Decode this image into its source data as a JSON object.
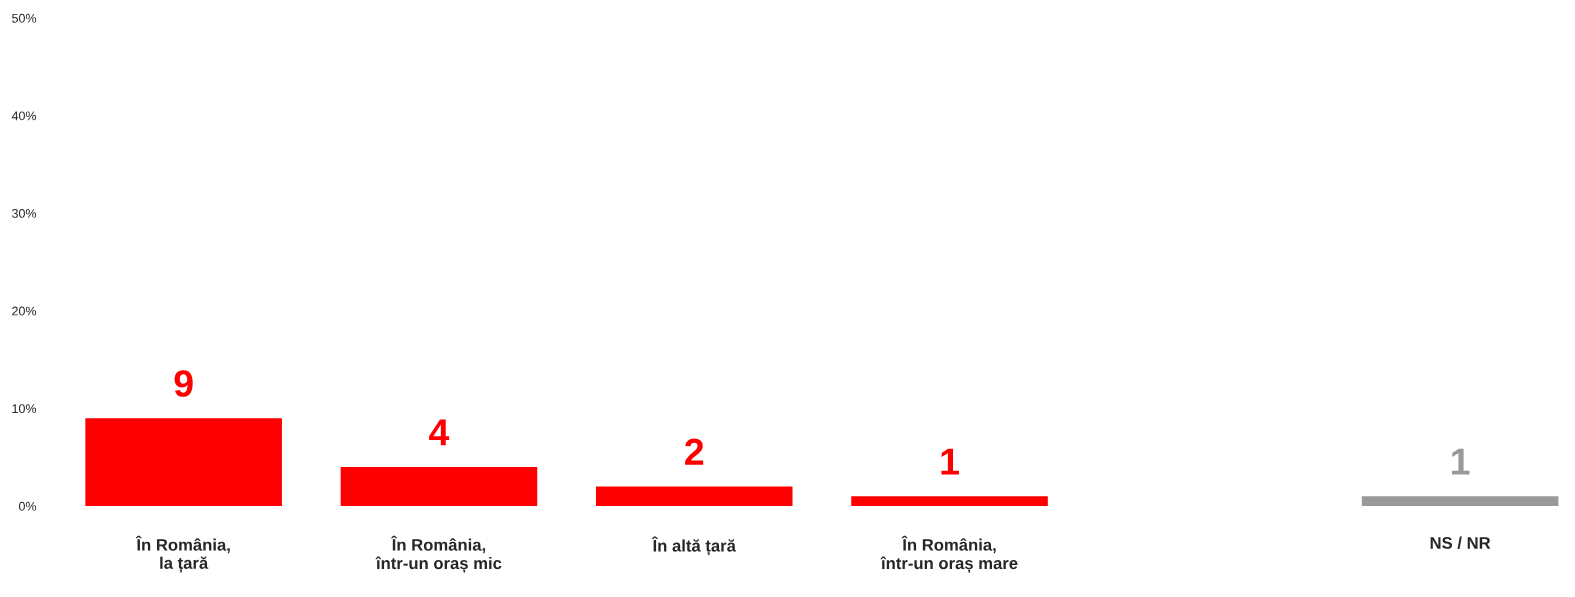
{
  "chart_data": {
    "type": "bar",
    "categories": [
      "În România,\nla țară",
      "În România,\nîntr-un oraș mic",
      "În altă țară",
      "În România,\nîntr-un oraș mare",
      null,
      "NS / NR"
    ],
    "values": [
      9,
      4,
      2,
      1,
      null,
      1
    ],
    "colors": [
      "#ff0000",
      "#ff0000",
      "#ff0000",
      "#ff0000",
      null,
      "#999999"
    ],
    "data_labels": true,
    "ylim": [
      0,
      50
    ],
    "yticks": [
      {
        "value": 0,
        "label": "0%"
      },
      {
        "value": 10,
        "label": "10%"
      },
      {
        "value": 20,
        "label": "20%"
      },
      {
        "value": 30,
        "label": "30%"
      },
      {
        "value": 40,
        "label": "40%"
      },
      {
        "value": 50,
        "label": "50%"
      }
    ],
    "grid": false,
    "legend": false
  }
}
